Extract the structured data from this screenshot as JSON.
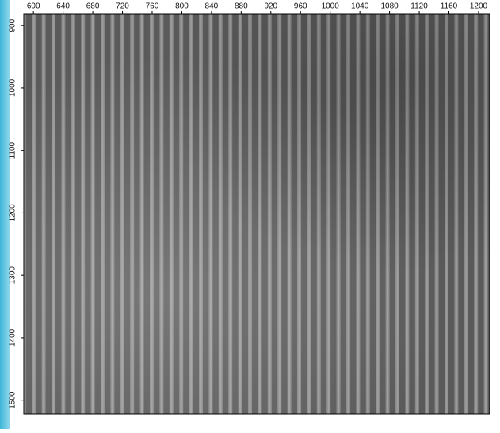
{
  "chart_data": {
    "type": "image",
    "xlim": [
      587,
      1215
    ],
    "xticks": [
      600,
      640,
      680,
      720,
      760,
      800,
      840,
      880,
      920,
      960,
      1000,
      1040,
      1080,
      1120,
      1160,
      1200
    ],
    "ylim": [
      882,
      1522
    ],
    "yticks": [
      900,
      1000,
      1100,
      1200,
      1300,
      1400,
      1500
    ]
  }
}
